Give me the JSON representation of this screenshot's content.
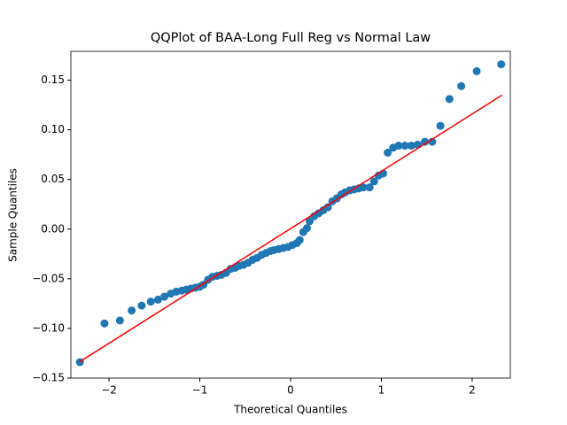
{
  "chart_data": {
    "type": "scatter",
    "title": "QQPlot of BAA-Long Full Reg vs Normal Law",
    "x_label": "Theoretical Quantiles",
    "y_label": "Sample Quantiles",
    "xlim": [
      -2.42,
      2.42
    ],
    "ylim": [
      -0.15,
      0.179
    ],
    "xticks": [
      {
        "value": -2,
        "label": "−2"
      },
      {
        "value": -1,
        "label": "−1"
      },
      0,
      1,
      2
    ],
    "yticks": [
      {
        "value": -0.15,
        "label": "−0.15"
      },
      {
        "value": -0.1,
        "label": "−0.10"
      },
      {
        "value": -0.05,
        "label": "−0.05"
      },
      {
        "value": 0,
        "label": "0.00"
      },
      {
        "value": 0.05,
        "label": "0.05"
      },
      {
        "value": 0.1,
        "label": "0.10"
      },
      {
        "value": 0.15,
        "label": "0.15"
      }
    ],
    "series": [
      {
        "kind": "scatter",
        "color": "#1f77b4",
        "x": [
          -2.32,
          -2.05,
          -1.88,
          -1.75,
          -1.64,
          -1.54,
          -1.46,
          -1.39,
          -1.32,
          -1.26,
          -1.2,
          -1.15,
          -1.1,
          -1.05,
          -1.0,
          -0.96,
          -0.91,
          -0.86,
          -0.81,
          -0.76,
          -0.71,
          -0.66,
          -0.61,
          -0.57,
          -0.52,
          -0.47,
          -0.42,
          -0.37,
          -0.32,
          -0.27,
          -0.22,
          -0.18,
          -0.13,
          -0.08,
          -0.03,
          0.02,
          0.07,
          0.1,
          0.14,
          0.18,
          0.21,
          0.26,
          0.31,
          0.36,
          0.41,
          0.46,
          0.51,
          0.56,
          0.6,
          0.65,
          0.7,
          0.75,
          0.8,
          0.87,
          0.92,
          0.97,
          1.02,
          1.07,
          1.13,
          1.19,
          1.26,
          1.33,
          1.4,
          1.48,
          1.56,
          1.65,
          1.75,
          1.88,
          2.05,
          2.32
        ],
        "values": [
          -0.134,
          -0.095,
          -0.092,
          -0.082,
          -0.077,
          -0.073,
          -0.071,
          -0.068,
          -0.065,
          -0.063,
          -0.062,
          -0.061,
          -0.06,
          -0.059,
          -0.058,
          -0.056,
          -0.051,
          -0.048,
          -0.047,
          -0.046,
          -0.044,
          -0.04,
          -0.039,
          -0.037,
          -0.036,
          -0.034,
          -0.031,
          -0.029,
          -0.026,
          -0.024,
          -0.022,
          -0.021,
          -0.02,
          -0.019,
          -0.018,
          -0.016,
          -0.014,
          -0.011,
          -0.003,
          0.001,
          0.008,
          0.013,
          0.016,
          0.019,
          0.022,
          0.028,
          0.031,
          0.035,
          0.037,
          0.039,
          0.04,
          0.041,
          0.042,
          0.042,
          0.048,
          0.054,
          0.056,
          0.077,
          0.082,
          0.084,
          0.084,
          0.084,
          0.085,
          0.088,
          0.088,
          0.104,
          0.131,
          0.144,
          0.159,
          0.166
        ]
      },
      {
        "kind": "line",
        "color": "#ff0000",
        "x": [
          -2.33,
          2.33
        ],
        "values": [
          -0.134,
          0.135
        ]
      }
    ]
  }
}
